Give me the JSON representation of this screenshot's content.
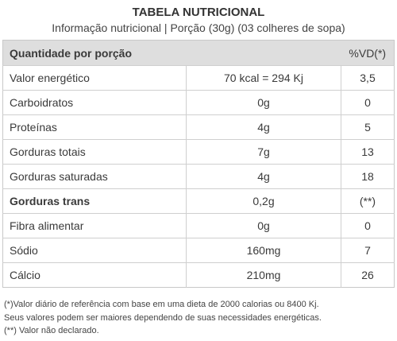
{
  "title": "TABELA NUTRICIONAL",
  "subtitle": "Informação nutricional | Porção (30g) (03 colheres de sopa)",
  "table": {
    "header": {
      "label": "Quantidade por porção",
      "vd": "%VD(*)"
    },
    "rows": [
      {
        "cells": [
          "Valor energético",
          "70 kcal = 294 Kj",
          "3,5"
        ]
      },
      {
        "cells": [
          "Carboidratos",
          "0g",
          "0"
        ]
      },
      {
        "cells": [
          "Proteínas",
          "4g",
          "5"
        ]
      },
      {
        "cells": [
          "Gorduras totais",
          "7g",
          "13"
        ]
      },
      {
        "cells": [
          "Gorduras saturadas",
          "4g",
          "18"
        ]
      },
      {
        "cells": [
          "Gorduras trans",
          "0,2g",
          "(**)"
        ],
        "bold": true
      },
      {
        "cells": [
          "Fibra alimentar",
          "0g",
          "0"
        ]
      },
      {
        "cells": [
          "Sódio",
          "160mg",
          "7"
        ]
      },
      {
        "cells": [
          "Cálcio",
          "210mg",
          "26"
        ]
      }
    ]
  },
  "footnotes": [
    "(*)Valor diário de referência com base em uma dieta de 2000 calorias ou 8400 Kj.",
    "Seus valores podem ser maiores dependendo de suas necessidades energéticas.",
    "(**) Valor não declarado."
  ]
}
